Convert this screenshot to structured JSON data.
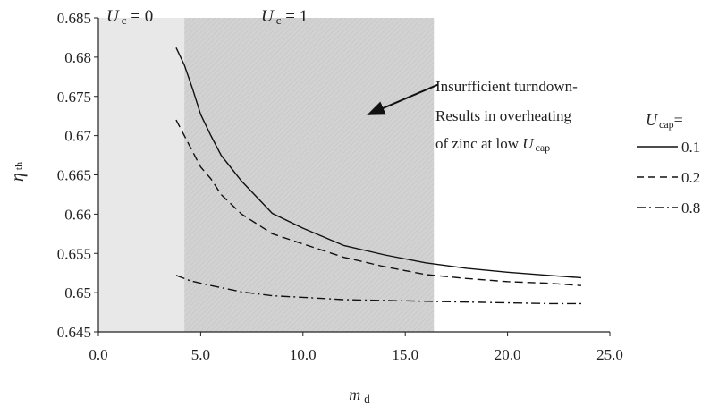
{
  "chart_data": {
    "type": "line",
    "xlabel": "m",
    "xlabel_sub": "d",
    "ylabel": "η",
    "ylabel_sub": "th",
    "xlim": [
      0,
      25
    ],
    "ylim": [
      0.645,
      0.685
    ],
    "x_ticks": [
      {
        "value": 0,
        "label": "0.0"
      },
      {
        "value": 5,
        "label": "5.0"
      },
      {
        "value": 10,
        "label": "10.0"
      },
      {
        "value": 15,
        "label": "15.0"
      },
      {
        "value": 20,
        "label": "20.0"
      },
      {
        "value": 25,
        "label": "25.0"
      }
    ],
    "y_ticks": [
      {
        "value": 0.645,
        "label": "0.645"
      },
      {
        "value": 0.65,
        "label": "0.65"
      },
      {
        "value": 0.655,
        "label": "0.655"
      },
      {
        "value": 0.66,
        "label": "0.66"
      },
      {
        "value": 0.665,
        "label": "0.665"
      },
      {
        "value": 0.67,
        "label": "0.67"
      },
      {
        "value": 0.675,
        "label": "0.675"
      },
      {
        "value": 0.68,
        "label": "0.68"
      },
      {
        "value": 0.685,
        "label": "0.685"
      }
    ],
    "regions": [
      {
        "name": "uc0",
        "x0": 0,
        "x1": 4.2,
        "label_main": "U",
        "label_sub": "c",
        "label_rest": " = 0",
        "color": "#e8e8e8"
      },
      {
        "name": "uc1",
        "x0": 4.2,
        "x1": 16.4,
        "label_main": "U",
        "label_sub": "c",
        "label_rest": " = 1",
        "color": "#d0d0d0"
      }
    ],
    "annotation": {
      "lines": [
        {
          "text": "Insurfficient turndown-"
        },
        {
          "text": "Results in overheating"
        },
        {
          "text": "of zinc at low ",
          "italic_main": "U",
          "sub": "cap"
        }
      ],
      "arrow_from": {
        "x": 16.6,
        "y": 0.6765
      },
      "arrow_to": {
        "x": 13.2,
        "y": 0.6727
      }
    },
    "legend": {
      "title_main": "U",
      "title_sub": "cap",
      "title_rest": "=",
      "position": "right"
    },
    "series": [
      {
        "name": "0.1",
        "dash": "solid",
        "points": [
          [
            3.8,
            0.6812
          ],
          [
            4.2,
            0.679
          ],
          [
            4.6,
            0.676
          ],
          [
            5.0,
            0.6727
          ],
          [
            5.5,
            0.67
          ],
          [
            6.0,
            0.6675
          ],
          [
            7.0,
            0.6642
          ],
          [
            8.5,
            0.6601
          ],
          [
            10.0,
            0.6582
          ],
          [
            12.0,
            0.656
          ],
          [
            14.0,
            0.6548
          ],
          [
            16.0,
            0.6538
          ],
          [
            18.0,
            0.6531
          ],
          [
            20.0,
            0.6526
          ],
          [
            22.0,
            0.6522
          ],
          [
            23.6,
            0.6519
          ]
        ]
      },
      {
        "name": "0.2",
        "dash": "dashed",
        "points": [
          [
            3.8,
            0.672
          ],
          [
            4.2,
            0.67
          ],
          [
            4.6,
            0.668
          ],
          [
            5.0,
            0.666
          ],
          [
            5.5,
            0.6645
          ],
          [
            6.0,
            0.6625
          ],
          [
            7.0,
            0.66
          ],
          [
            8.5,
            0.6575
          ],
          [
            10.0,
            0.6562
          ],
          [
            12.0,
            0.6545
          ],
          [
            14.0,
            0.6533
          ],
          [
            16.0,
            0.6523
          ],
          [
            18.0,
            0.6518
          ],
          [
            20.0,
            0.6514
          ],
          [
            22.0,
            0.6512
          ],
          [
            23.6,
            0.6509
          ]
        ]
      },
      {
        "name": "0.8",
        "dash": "dashdot",
        "points": [
          [
            3.8,
            0.6522
          ],
          [
            4.5,
            0.6515
          ],
          [
            5.5,
            0.6509
          ],
          [
            7.0,
            0.6501
          ],
          [
            8.5,
            0.6496
          ],
          [
            10.0,
            0.6494
          ],
          [
            12.0,
            0.6491
          ],
          [
            14.0,
            0.649
          ],
          [
            16.0,
            0.6489
          ],
          [
            18.0,
            0.6488
          ],
          [
            20.0,
            0.6487
          ],
          [
            22.0,
            0.6486
          ],
          [
            23.6,
            0.6486
          ]
        ]
      }
    ]
  }
}
